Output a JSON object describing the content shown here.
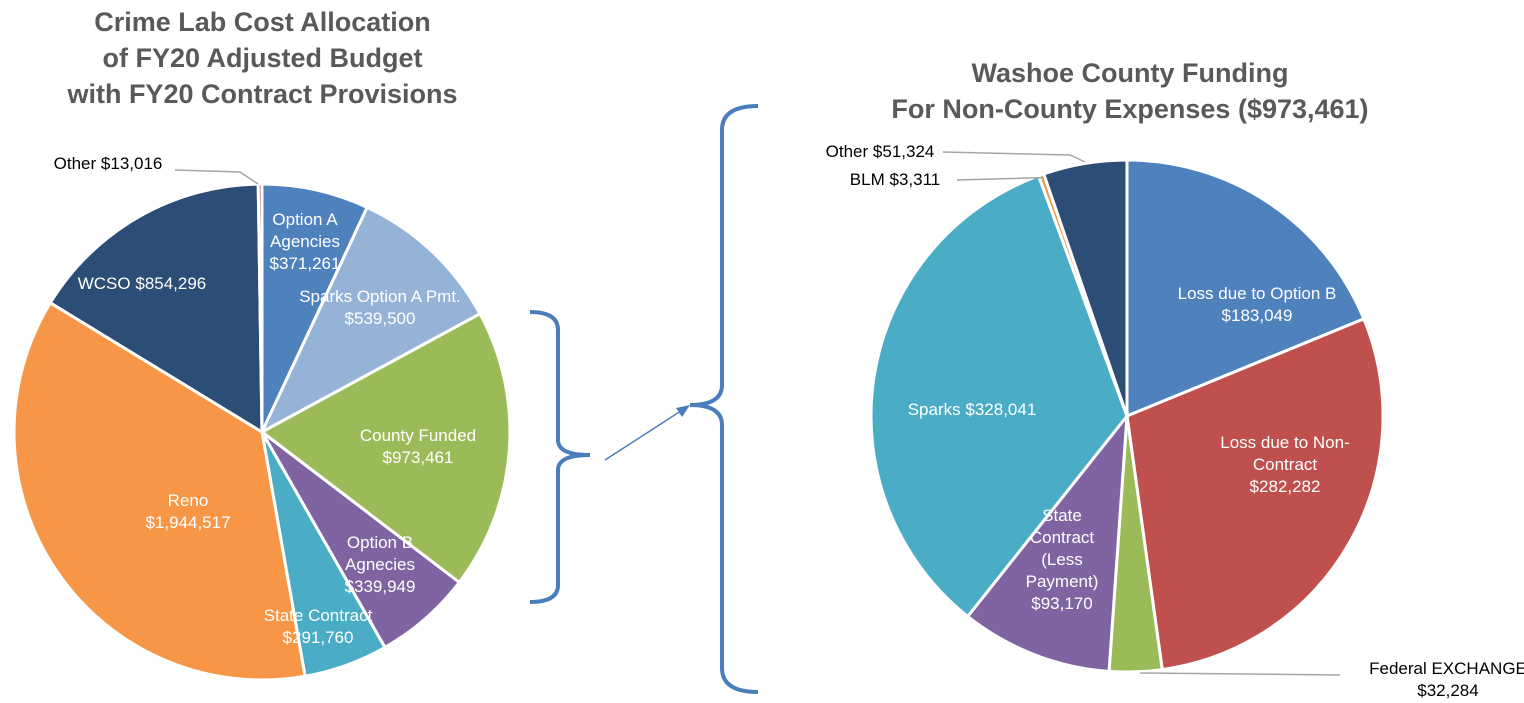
{
  "chart_data": [
    {
      "type": "pie",
      "title": [
        "Crime Lab Cost Allocation",
        "of FY20 Adjusted Budget",
        "with FY20 Contract Provisions"
      ],
      "categories": [
        "Option A Agencies",
        "Sparks Option A Pmt.",
        "County Funded",
        "Option B Agnecies",
        "State Contract",
        "Reno",
        "WCSO",
        "Other"
      ],
      "values": [
        371261,
        539500,
        973461,
        339949,
        291760,
        1944517,
        854296,
        13016
      ],
      "value_labels": [
        "$371,261",
        "$539,500",
        "$973,461",
        "$339,949",
        "$291,760",
        "$1,944,517",
        "$854,296",
        "$13,016"
      ],
      "colors": [
        "#4f81bd",
        "#95b3d7",
        "#9bbb59",
        "#8064a2",
        "#4bacc6",
        "#f79646",
        "#2c4d75",
        "#c0504d"
      ]
    },
    {
      "type": "pie",
      "title": [
        "Washoe County Funding",
        "For Non-County Expenses ($973,461)"
      ],
      "categories": [
        "Loss due to Option B",
        "Loss due to Non-Contract",
        "Federal EXCHANGE",
        "State Contract (Less Payment)",
        "Sparks",
        "BLM",
        "Other"
      ],
      "values": [
        183049,
        282282,
        32284,
        93170,
        328041,
        3311,
        51324
      ],
      "value_labels": [
        "$183,049",
        "$282,282",
        "$32,284",
        "$93,170",
        "$328,041",
        "$3,311",
        "$51,324"
      ],
      "colors": [
        "#4f81bd",
        "#c0504d",
        "#9bbb59",
        "#8064a2",
        "#4bacc6",
        "#f79646",
        "#2c4d75"
      ]
    }
  ]
}
